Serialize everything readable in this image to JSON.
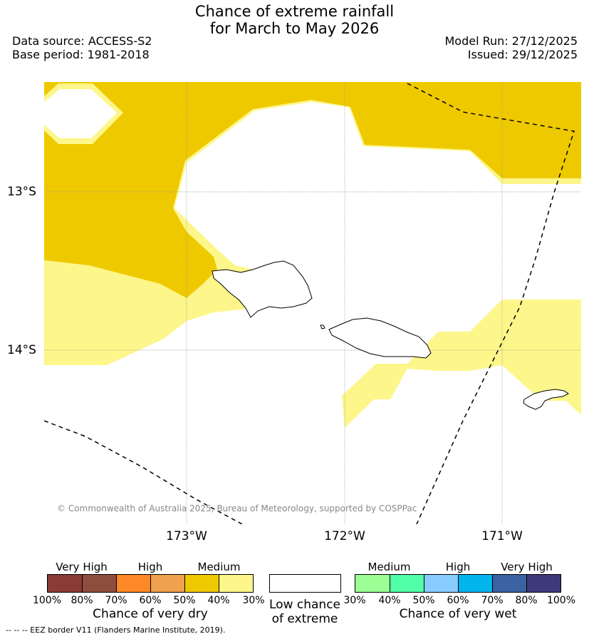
{
  "header": {
    "title_line1": "Chance of extreme rainfall",
    "title_line2": "for March to May 2026",
    "data_source": "Data source: ACCESS-S2",
    "base_period": "Base period: 1981-2018",
    "model_run": "Model Run: 27/12/2025",
    "issued": "Issued: 29/12/2025"
  },
  "map": {
    "lat_labels": [
      "13°S",
      "14°S"
    ],
    "lon_labels": [
      "173°W",
      "172°W",
      "171°W"
    ],
    "copyright": "© Commonwealth of Australia 2025, Bureau of Meteorology, supported by COSPPac",
    "colors": {
      "medium_dry": "#EEC900",
      "low_dry": "#FDF68A",
      "land_outline": "#000000",
      "grid": "#999999"
    },
    "features": [
      "Savai'i",
      "Upolu",
      "Tutuila",
      "EEZ border"
    ]
  },
  "legend": {
    "dry": {
      "headers": [
        "Very High",
        "High",
        "Medium"
      ],
      "ticks": [
        "100%",
        "80%",
        "70%",
        "60%",
        "50%",
        "40%",
        "30%"
      ],
      "caption": "Chance of very dry",
      "colors": [
        "#8B3A35",
        "#8E4E3E",
        "#FF8826",
        "#EFA14D",
        "#EEC900",
        "#FDF68A"
      ]
    },
    "low": {
      "caption_line1": "Low chance",
      "caption_line2": "of extreme"
    },
    "wet": {
      "headers": [
        "Medium",
        "High",
        "Very High"
      ],
      "ticks": [
        "30%",
        "40%",
        "50%",
        "60%",
        "70%",
        "80%",
        "100%"
      ],
      "caption": "Chance of very wet",
      "colors": [
        "#9BFF96",
        "#52FFA9",
        "#88CCFF",
        "#00B4EC",
        "#3B62A1",
        "#3E3978"
      ]
    }
  },
  "footer": {
    "eez_note": "--  --  -- EEZ border V11 (Flanders Marine Institute, 2019)."
  }
}
